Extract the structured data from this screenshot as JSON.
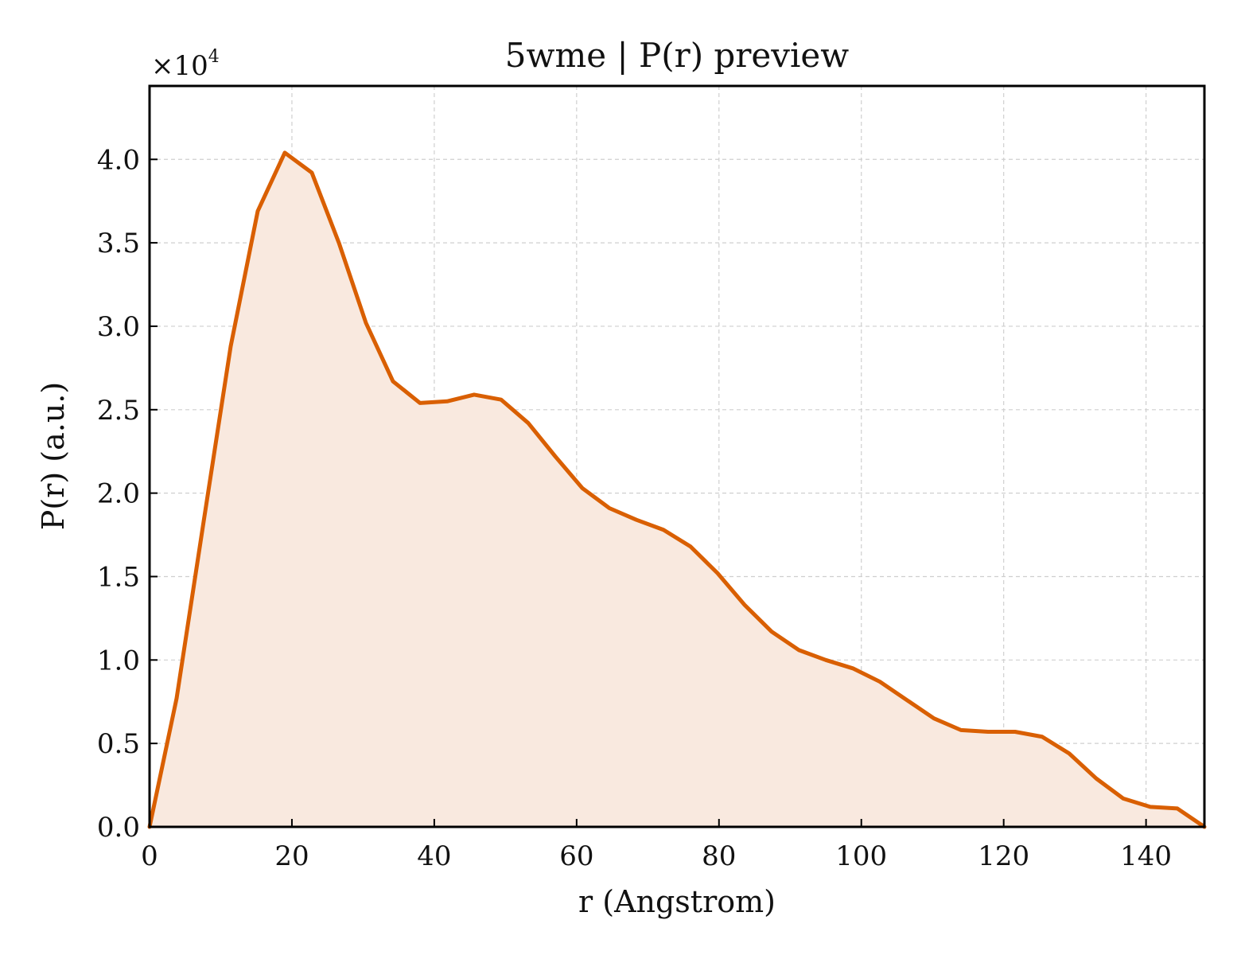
{
  "chart_data": {
    "type": "area",
    "title": "5wme | P(r) preview",
    "xlabel": "r (Angstrom)",
    "ylabel": "P(r) (a.u.)",
    "y_multiplier_label": "×10",
    "y_multiplier_exponent": "4",
    "xlim": [
      0,
      148.2
    ],
    "ylim": [
      0,
      4.44
    ],
    "x_ticks": [
      0,
      20,
      40,
      60,
      80,
      100,
      120,
      140
    ],
    "x_tick_labels": [
      "0",
      "20",
      "40",
      "60",
      "80",
      "100",
      "120",
      "140"
    ],
    "y_ticks": [
      0,
      0.5,
      1.0,
      1.5,
      2.0,
      2.5,
      3.0,
      3.5,
      4.0
    ],
    "y_tick_labels": [
      "0.0",
      "0.5",
      "1.0",
      "1.5",
      "2.0",
      "2.5",
      "3.0",
      "3.5",
      "4.0"
    ],
    "grid": true,
    "line_color": "#d95f02",
    "fill_color": "#f9e9df",
    "series": [
      {
        "x": [
          0,
          3.8,
          7.6,
          11.4,
          15.2,
          19.0,
          22.8,
          26.6,
          30.4,
          34.2,
          38.0,
          41.8,
          45.6,
          49.4,
          53.2,
          57.0,
          60.8,
          64.6,
          68.4,
          72.2,
          76.0,
          79.8,
          83.6,
          87.4,
          91.2,
          95.0,
          98.8,
          102.6,
          106.4,
          110.2,
          114.0,
          117.8,
          121.6,
          125.4,
          129.2,
          133.0,
          136.8,
          140.6,
          144.4,
          148.2
        ],
        "y": [
          0.0,
          0.77,
          1.83,
          2.88,
          3.69,
          4.04,
          3.92,
          3.5,
          3.02,
          2.67,
          2.54,
          2.55,
          2.59,
          2.56,
          2.42,
          2.22,
          2.03,
          1.91,
          1.84,
          1.78,
          1.68,
          1.52,
          1.33,
          1.17,
          1.06,
          1.0,
          0.95,
          0.87,
          0.76,
          0.65,
          0.58,
          0.57,
          0.57,
          0.54,
          0.44,
          0.29,
          0.17,
          0.12,
          0.11,
          0.0
        ]
      }
    ]
  }
}
